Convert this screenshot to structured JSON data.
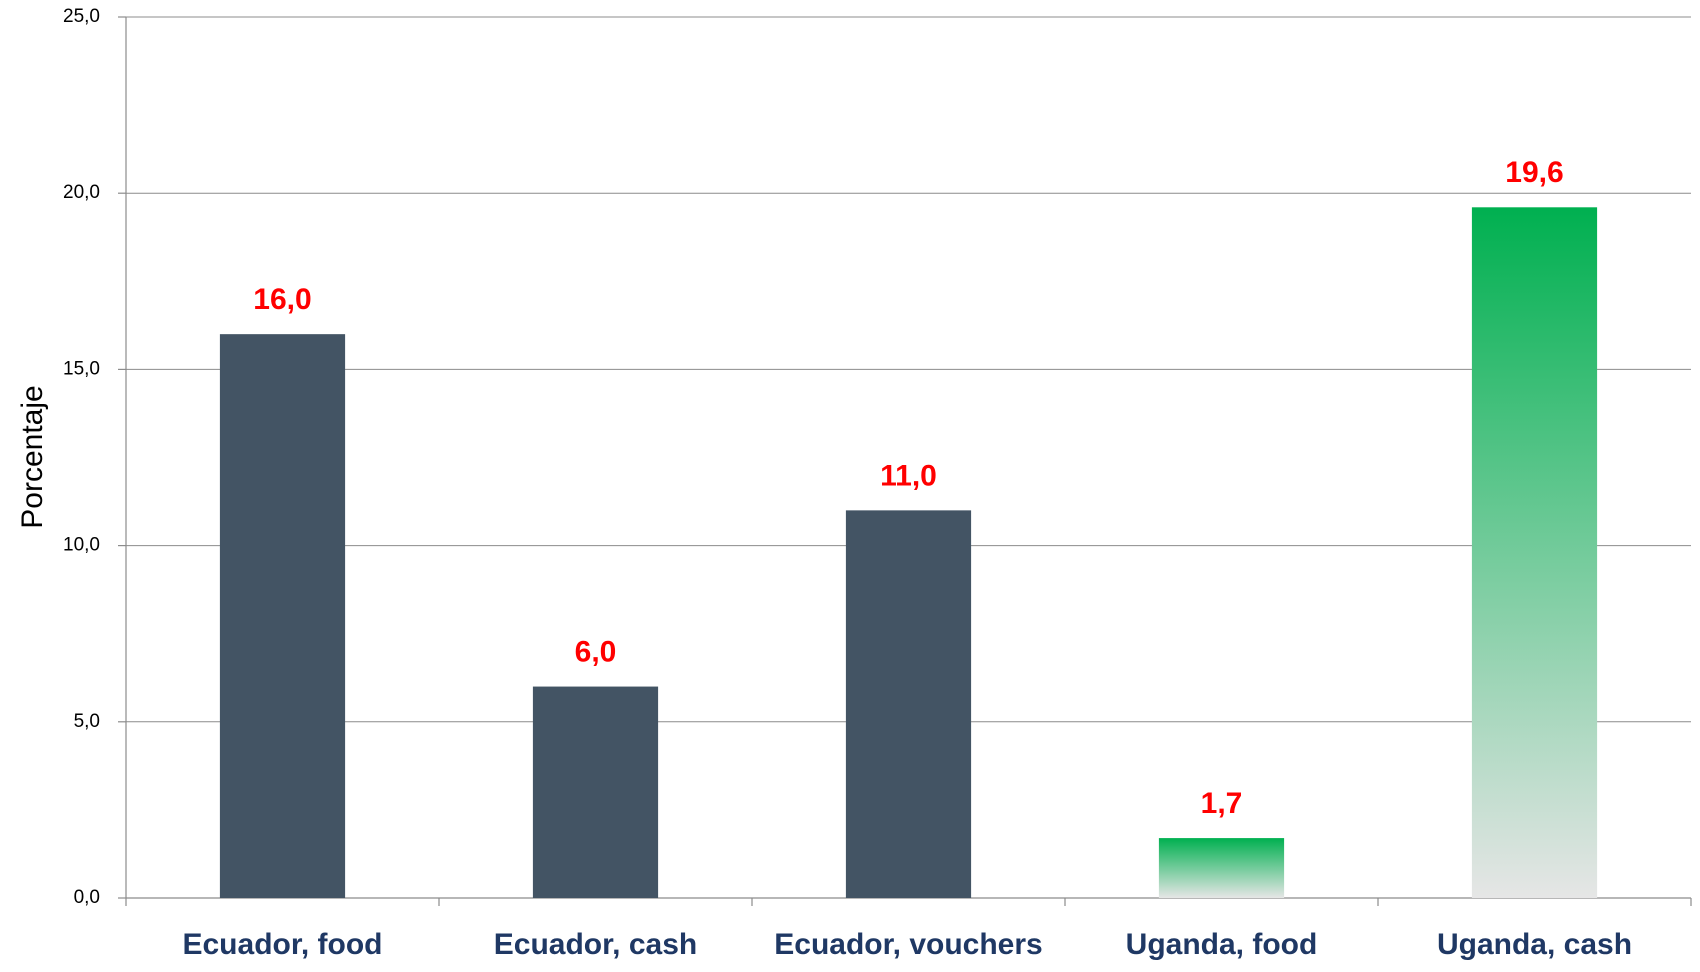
{
  "chart_data": {
    "type": "bar",
    "y_label": "Porcentaje",
    "categories": [
      "Ecuador, food",
      "Ecuador, cash",
      "Ecuador, vouchers",
      "Uganda, food",
      "Uganda, cash"
    ],
    "values": [
      16.0,
      6.0,
      11.0,
      1.7,
      19.6
    ],
    "value_labels": [
      "16,0",
      "6,0",
      "11,0",
      "1,7",
      "19,6"
    ],
    "colors": [
      "#435464",
      "#435464",
      "#435464",
      [
        "#00b050",
        "#e6e6e6"
      ],
      [
        "#00b050",
        "#e6e6e6"
      ]
    ],
    "ylim": [
      0,
      25
    ],
    "yticks": [
      {
        "value": 0,
        "label": "0,0"
      },
      {
        "value": 5,
        "label": "5,0"
      },
      {
        "value": 10,
        "label": "10,0"
      },
      {
        "value": 15,
        "label": "15,0"
      },
      {
        "value": 20,
        "label": "20,0"
      },
      {
        "value": 25,
        "label": "25,0"
      }
    ],
    "grid": true
  }
}
